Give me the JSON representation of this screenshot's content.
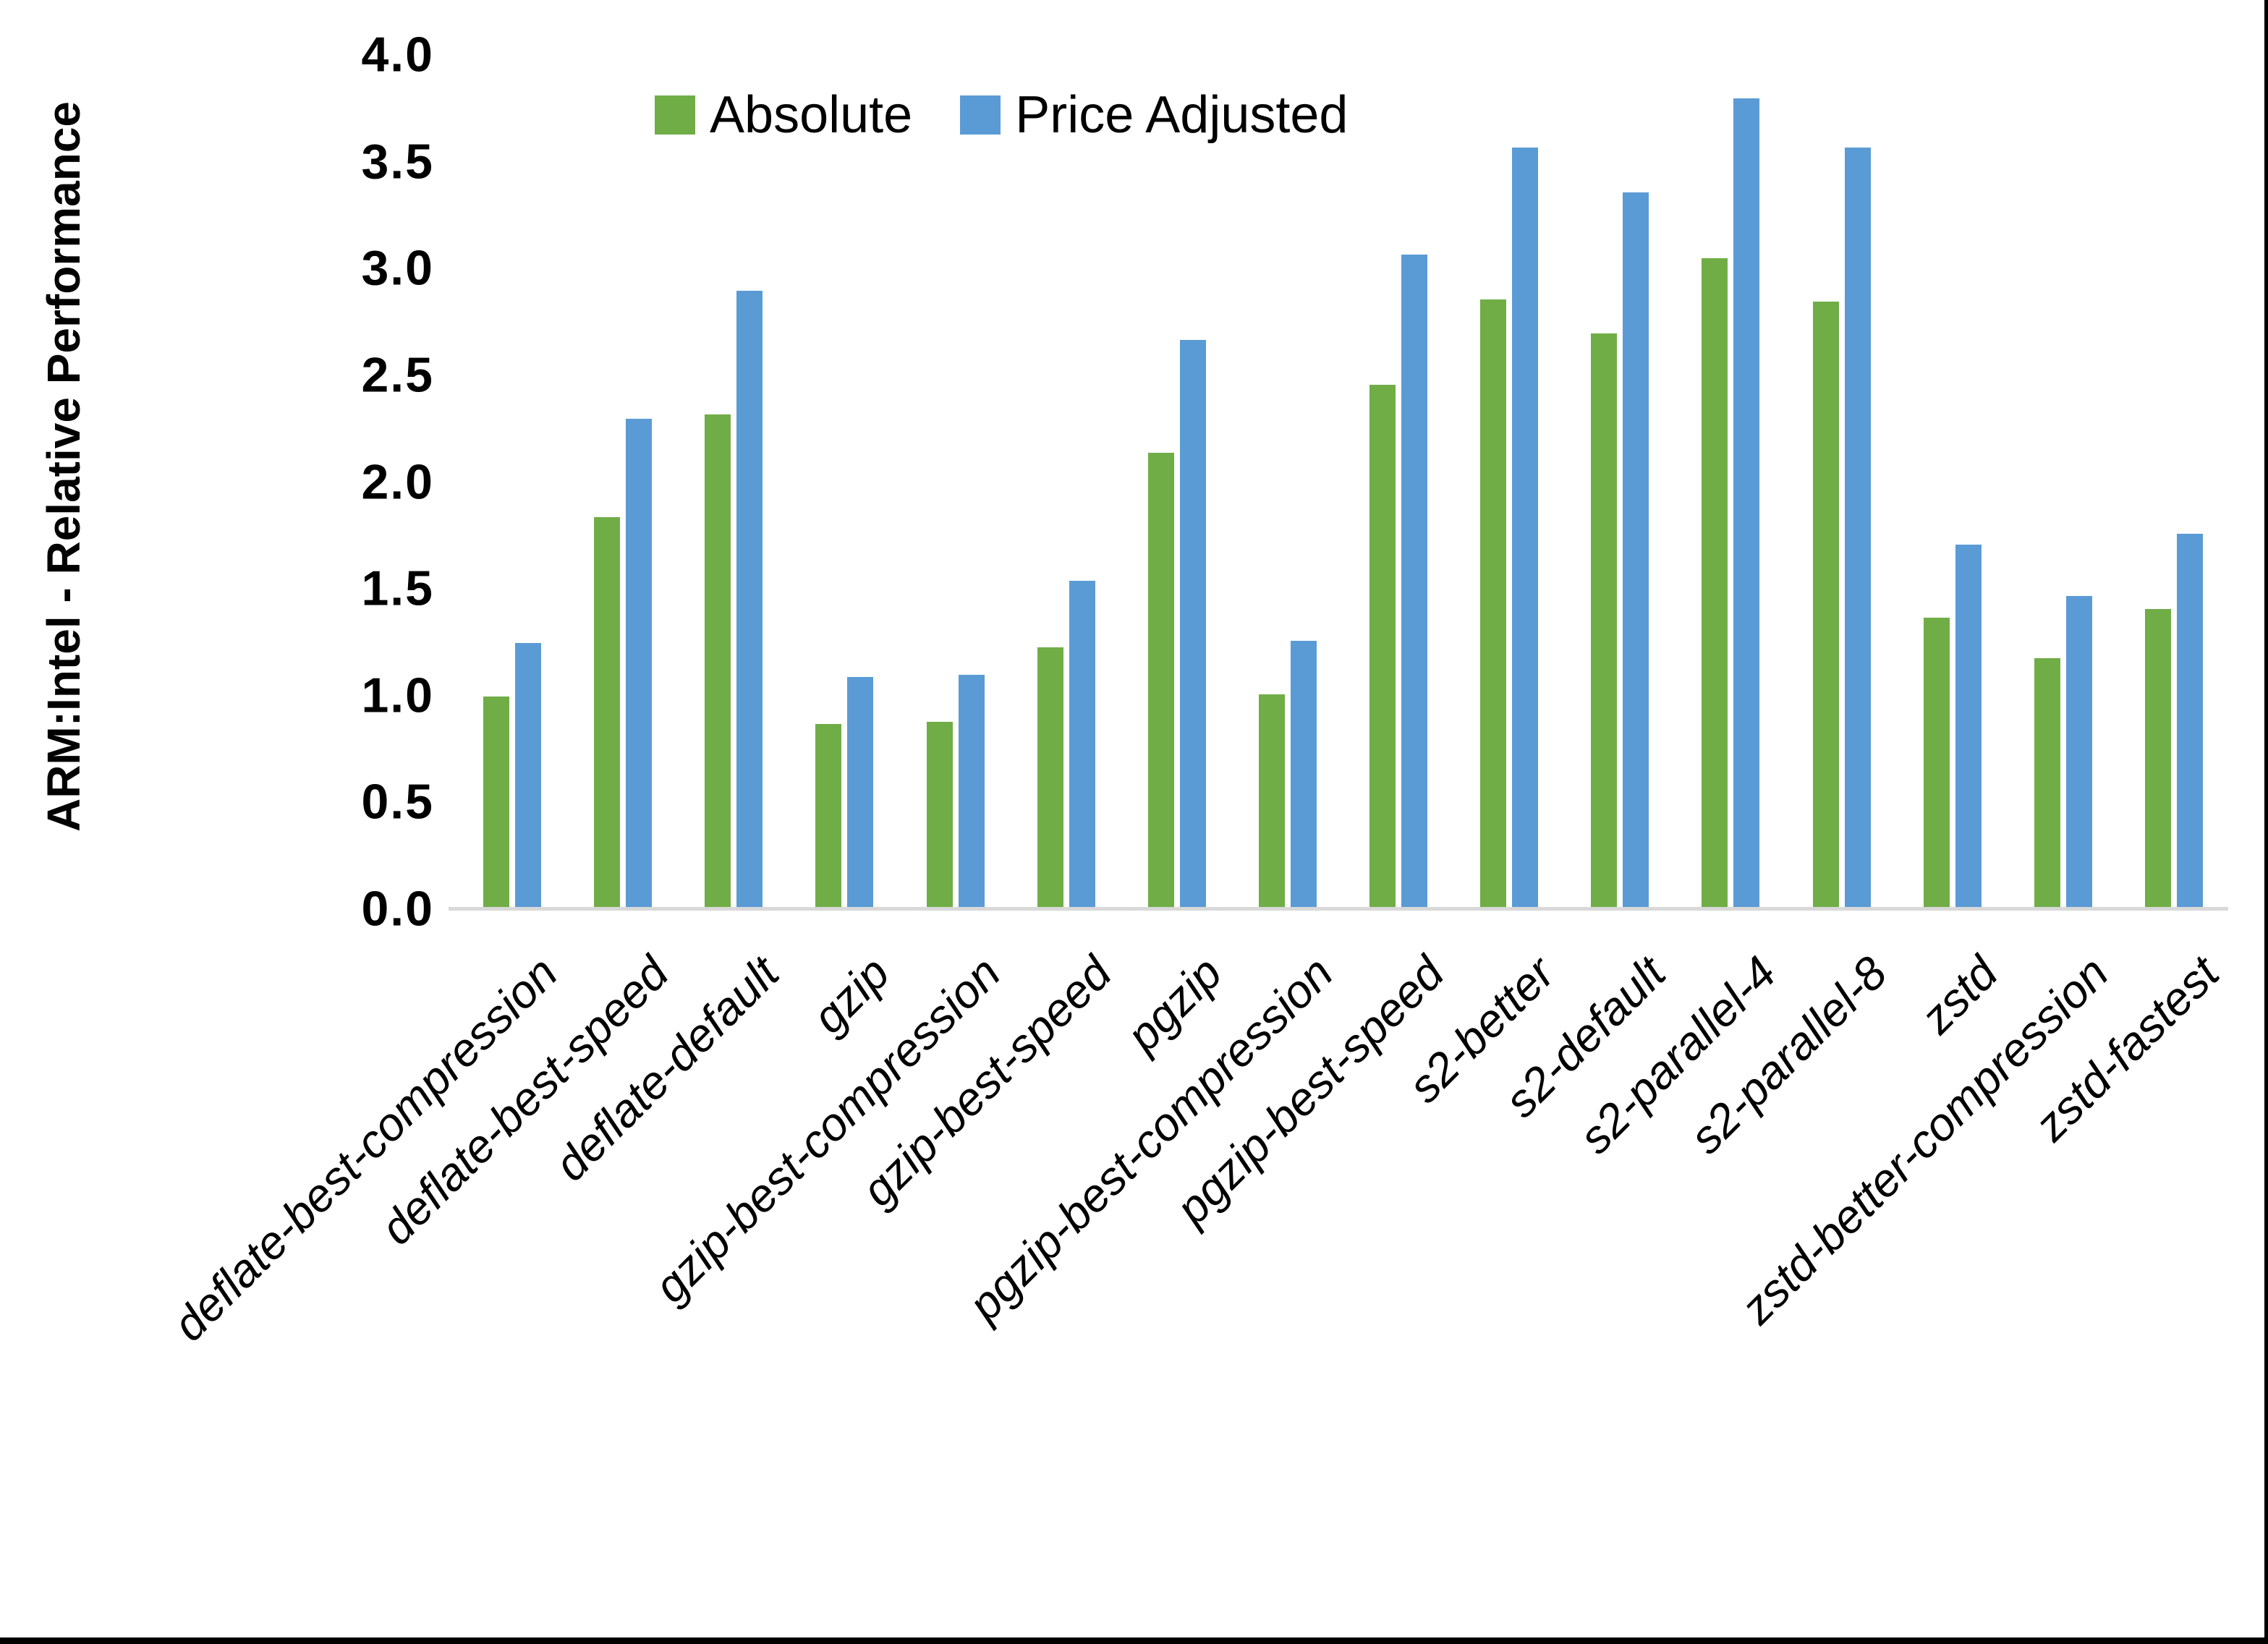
{
  "chart_data": {
    "type": "bar",
    "title": "",
    "ylabel": "ARM:Intel - Relative Performance",
    "xlabel": "",
    "ylim": [
      0.0,
      4.0
    ],
    "ytick_step": 0.5,
    "ytick_labels": [
      "0.0",
      "0.5",
      "1.0",
      "1.5",
      "2.0",
      "2.5",
      "3.0",
      "3.5",
      "4.0"
    ],
    "grid": false,
    "legend_position": "top-center",
    "categories": [
      "deflate-best-compression",
      "deflate-best-speed",
      "deflate-default",
      "gzip",
      "gzip-best-compression",
      "gzip-best-speed",
      "pgzip",
      "pgzip-best-compression",
      "pgzip-best-speed",
      "s2-better",
      "s2-default",
      "s2-parallel-4",
      "s2-parallel-8",
      "zstd",
      "zstd-better-compression",
      "zstd-fastest"
    ],
    "series": [
      {
        "name": "Absolute",
        "color": "#70AD47",
        "values": [
          1.0,
          1.84,
          2.32,
          0.87,
          0.88,
          1.23,
          2.14,
          1.01,
          2.46,
          2.86,
          2.7,
          3.05,
          2.85,
          1.37,
          1.18,
          1.41
        ]
      },
      {
        "name": "Price Adjusted",
        "color": "#5B9BD5",
        "values": [
          1.25,
          2.3,
          2.9,
          1.09,
          1.1,
          1.54,
          2.67,
          1.26,
          3.07,
          3.57,
          3.36,
          3.8,
          3.57,
          1.71,
          1.47,
          1.76
        ]
      }
    ]
  },
  "colors": {
    "absolute": "#70AD47",
    "price_adjusted": "#5B9BD5",
    "axis_line": "#D9D9D9",
    "text": "#000000",
    "frame": "#000000"
  }
}
